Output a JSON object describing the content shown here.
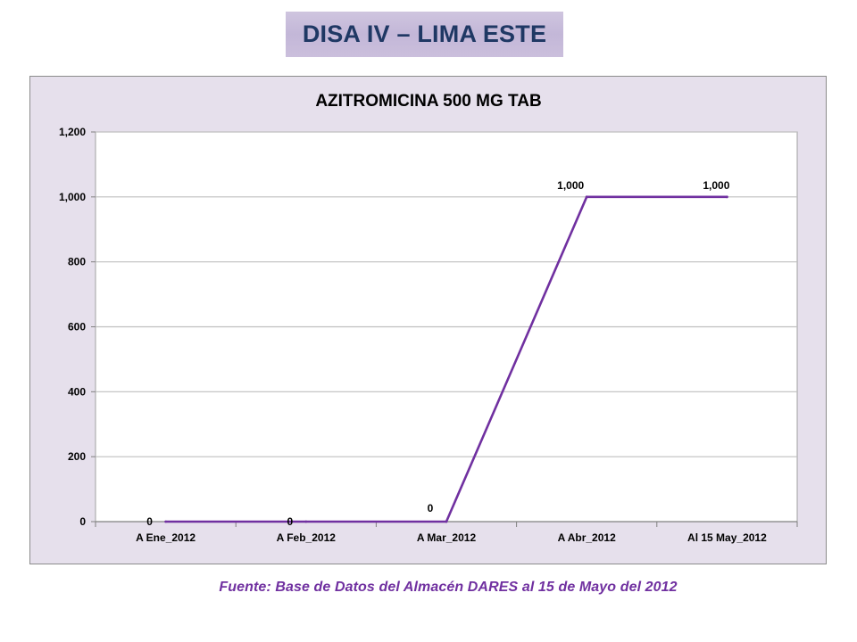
{
  "header": {
    "title": "DISA IV – LIMA ESTE"
  },
  "footer": {
    "source": "Fuente: Base de Datos del Almacén DARES al 15 de Mayo del 2012"
  },
  "colors": {
    "line": "#7030a0",
    "banner_text": "#1f3864",
    "chart_background": "#e6e0ec",
    "plot_background": "#ffffff",
    "gridline": "#bfbfbf"
  },
  "chart_data": {
    "type": "line",
    "title": "AZITROMICINA 500 MG TAB",
    "xlabel": "",
    "ylabel": "",
    "categories": [
      "A Ene_2012",
      "A Feb_2012",
      "A Mar_2012",
      "A Abr_2012",
      "Al 15 May_2012"
    ],
    "series": [
      {
        "values": [
          0,
          0,
          0,
          1000,
          1000
        ]
      }
    ],
    "data_labels": [
      "0",
      "0",
      "0",
      "1,000",
      "1,000"
    ],
    "ylim": [
      0,
      1200
    ],
    "yticks": [
      0,
      200,
      400,
      600,
      800,
      1000,
      1200
    ],
    "ytick_labels": [
      "0",
      "200",
      "400",
      "600",
      "800",
      "1,000",
      "1,200"
    ],
    "grid": true,
    "legend": "none"
  }
}
